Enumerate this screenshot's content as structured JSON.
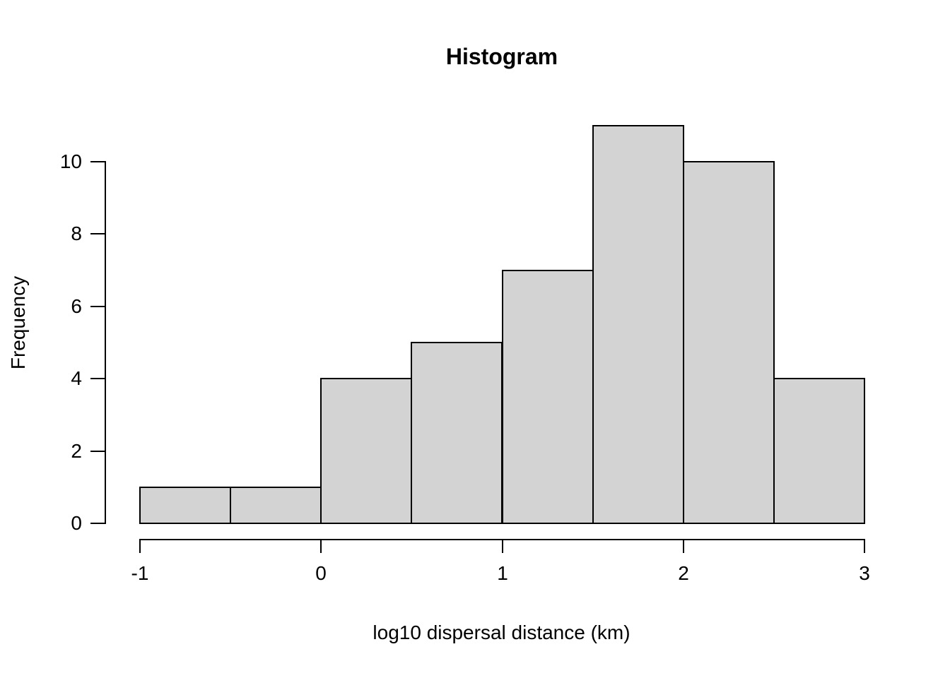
{
  "chart_data": {
    "type": "bar",
    "subtype": "histogram",
    "title": "Histogram",
    "xlabel": "log10 dispersal distance (km)",
    "ylabel": "Frequency",
    "bin_edges": [
      -1,
      -0.5,
      0,
      0.5,
      1,
      1.5,
      2,
      2.5,
      3
    ],
    "counts": [
      1,
      1,
      4,
      5,
      7,
      11,
      10,
      4
    ],
    "xticks": [
      -1,
      0,
      1,
      2,
      3
    ],
    "xtick_labels": [
      "-1",
      "0",
      "1",
      "2",
      "3"
    ],
    "yticks": [
      0,
      2,
      4,
      6,
      8,
      10
    ],
    "ytick_labels": [
      "0",
      "2",
      "4",
      "6",
      "8",
      "10"
    ],
    "xlim": [
      -1,
      3
    ],
    "ylim": [
      0,
      10
    ],
    "grid": false,
    "legend": false,
    "bar_fill_color": "#d3d3d3",
    "bar_border_color": "#000000",
    "axis_color": "#000000",
    "background_color": "#ffffff"
  }
}
